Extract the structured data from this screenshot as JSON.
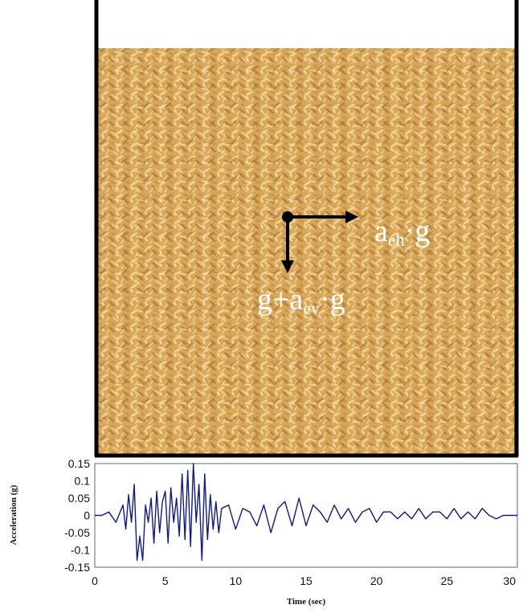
{
  "labels": {
    "horizontal_force": {
      "main": "a",
      "sub": "eh",
      "post": "·g"
    },
    "vertical_force": {
      "pre": "g+a",
      "sub": "ev",
      "post": "·g"
    }
  },
  "colors": {
    "signal": "#0d1a8c",
    "wall": "#000000",
    "grain_base": "#d6a65a"
  },
  "chart_data": {
    "type": "line",
    "xlabel": "Time (sec)",
    "ylabel": "Acceleration (g)",
    "xlim": [
      0,
      30
    ],
    "ylim": [
      -0.15,
      0.15
    ],
    "xticks": [
      "0",
      "5",
      "10",
      "15",
      "20",
      "25",
      "30"
    ],
    "yticks": [
      "0.15",
      "0.1",
      "0.05",
      "0",
      "-0.05",
      "-0.1",
      "-0.15"
    ],
    "grid": false,
    "series": [
      {
        "x": [
          0,
          0.5,
          1,
          1.5,
          2,
          2.2,
          2.4,
          2.6,
          2.8,
          3,
          3.2,
          3.4,
          3.6,
          3.8,
          4,
          4.2,
          4.4,
          4.6,
          4.8,
          5,
          5.2,
          5.4,
          5.6,
          5.8,
          6,
          6.2,
          6.4,
          6.6,
          6.8,
          7,
          7.2,
          7.4,
          7.6,
          7.8,
          8,
          8.2,
          8.4,
          8.6,
          8.8,
          9,
          9.5,
          10,
          10.5,
          11,
          11.5,
          12,
          12.5,
          13,
          13.5,
          14,
          14.5,
          15,
          15.5,
          16,
          16.5,
          17,
          17.5,
          18,
          18.5,
          19,
          19.5,
          20,
          20.5,
          21,
          21.5,
          22,
          22.5,
          23,
          23.5,
          24,
          24.5,
          25,
          25.5,
          26,
          26.5,
          27,
          27.5,
          28,
          28.5,
          29,
          29.5,
          30
        ],
        "values": [
          0,
          0,
          0.01,
          -0.02,
          0.03,
          -0.04,
          0.06,
          -0.02,
          0.09,
          -0.13,
          -0.06,
          -0.13,
          0.03,
          -0.02,
          0.05,
          -0.08,
          0.07,
          -0.05,
          0.04,
          0.07,
          -0.08,
          0.08,
          -0.02,
          0.05,
          -0.06,
          0.12,
          -0.07,
          0.13,
          -0.09,
          0.15,
          -0.02,
          0.09,
          -0.13,
          0.12,
          -0.07,
          0.06,
          -0.04,
          0.04,
          -0.05,
          0.02,
          0.03,
          -0.04,
          0.02,
          0.01,
          -0.03,
          0.03,
          -0.05,
          0.02,
          0.04,
          -0.03,
          0.05,
          -0.03,
          0.03,
          0.01,
          -0.02,
          0.03,
          -0.01,
          0.02,
          -0.02,
          0.01,
          0.02,
          -0.02,
          0.01,
          0.01,
          -0.01,
          0.01,
          -0.01,
          0.02,
          -0.01,
          0.01,
          0.01,
          -0.01,
          0.02,
          -0.01,
          0.01,
          -0.01,
          0.02,
          0,
          -0.01,
          0,
          0,
          0
        ]
      }
    ]
  }
}
